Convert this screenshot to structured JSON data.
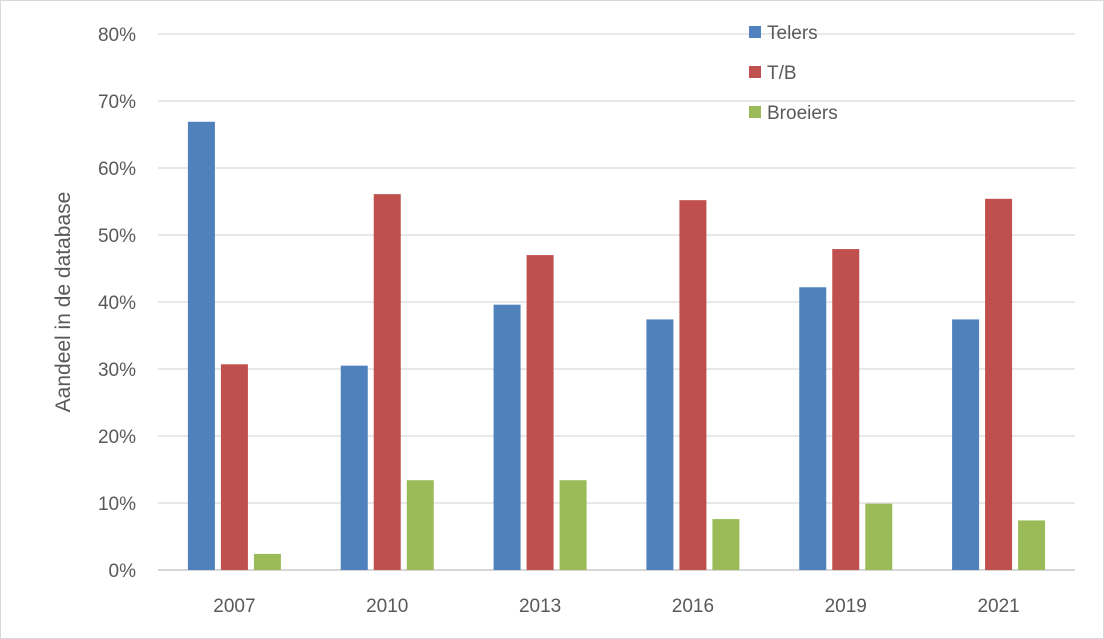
{
  "chart_data": {
    "type": "bar",
    "title": "",
    "xlabel": "",
    "ylabel": "Aandeel in de database",
    "categories": [
      "2007",
      "2010",
      "2013",
      "2016",
      "2019",
      "2021"
    ],
    "series": [
      {
        "name": "Telers",
        "color": "#4f81bd",
        "values": [
          0.669,
          0.305,
          0.396,
          0.374,
          0.422,
          0.374
        ]
      },
      {
        "name": "T/B",
        "color": "#c0504d",
        "values": [
          0.307,
          0.561,
          0.47,
          0.552,
          0.479,
          0.554
        ]
      },
      {
        "name": "Broeiers",
        "color": "#9bbb59",
        "values": [
          0.024,
          0.134,
          0.134,
          0.076,
          0.099,
          0.074
        ]
      }
    ],
    "yticks": [
      "0%",
      "10%",
      "20%",
      "30%",
      "40%",
      "50%",
      "60%",
      "70%",
      "80%"
    ],
    "ylim": [
      0,
      0.8
    ],
    "grid": true,
    "legend_position": "top-right"
  }
}
